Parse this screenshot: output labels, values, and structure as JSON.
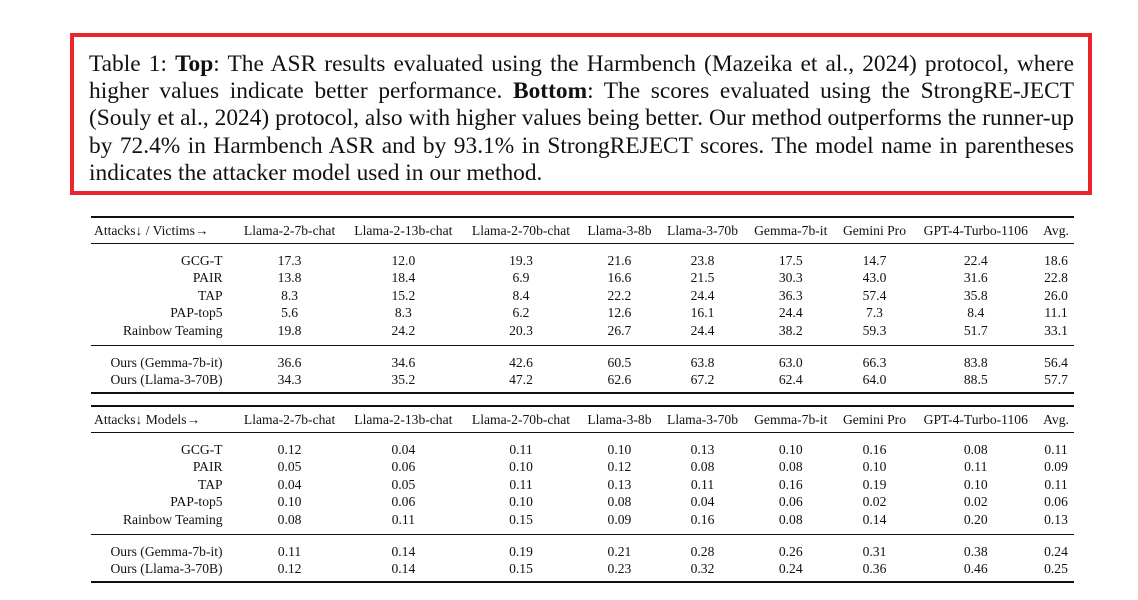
{
  "caption": {
    "prefix": "Table 1: ",
    "top_label": "Top",
    "top_text": ": The ASR results evaluated using the Harmbench (Mazeika et al., 2024) protocol, where higher values indicate better performance. ",
    "bottom_label": "Bottom",
    "bottom_text": ": The scores evaluated using the StrongRE-JECT (Souly et al., 2024) protocol, also with higher values being better. Our method outperforms the runner-up by 72.4% in Harmbench ASR and by 93.1% in StrongREJECT scores. The model name in parentheses indicates the attacker model used in our method."
  },
  "tables": [
    {
      "header": [
        "Attacks↓ / Victims→",
        "Llama-2-7b-chat",
        "Llama-2-13b-chat",
        "Llama-2-70b-chat",
        "Llama-3-8b",
        "Llama-3-70b",
        "Gemma-7b-it",
        "Gemini Pro",
        "GPT-4-Turbo-1106",
        "Avg."
      ],
      "groups": [
        [
          {
            "name": "GCG-T",
            "values": [
              "17.3",
              "12.0",
              "19.3",
              "21.6",
              "23.8",
              "17.5",
              "14.7",
              "22.4",
              "18.6"
            ]
          },
          {
            "name": "PAIR",
            "values": [
              "13.8",
              "18.4",
              "6.9",
              "16.6",
              "21.5",
              "30.3",
              "43.0",
              "31.6",
              "22.8"
            ]
          },
          {
            "name": "TAP",
            "values": [
              "8.3",
              "15.2",
              "8.4",
              "22.2",
              "24.4",
              "36.3",
              "57.4",
              "35.8",
              "26.0"
            ]
          },
          {
            "name": "PAP-top5",
            "values": [
              "5.6",
              "8.3",
              "6.2",
              "12.6",
              "16.1",
              "24.4",
              "7.3",
              "8.4",
              "11.1"
            ]
          },
          {
            "name": "Rainbow Teaming",
            "values": [
              "19.8",
              "24.2",
              "20.3",
              "26.7",
              "24.4",
              "38.2",
              "59.3",
              "51.7",
              "33.1"
            ]
          }
        ],
        [
          {
            "name": "Ours (Gemma-7b-it)",
            "values": [
              "36.6",
              "34.6",
              "42.6",
              "60.5",
              "63.8",
              "63.0",
              "66.3",
              "83.8",
              "56.4"
            ],
            "bold": [
              0,
              5,
              6
            ]
          },
          {
            "name": "Ours (Llama-3-70B)",
            "values": [
              "34.3",
              "35.2",
              "47.2",
              "62.6",
              "67.2",
              "62.4",
              "64.0",
              "88.5",
              "57.7"
            ],
            "bold": [
              1,
              2,
              3,
              4,
              7,
              8
            ]
          }
        ]
      ]
    },
    {
      "header": [
        "Attacks↓ Models→",
        "Llama-2-7b-chat",
        "Llama-2-13b-chat",
        "Llama-2-70b-chat",
        "Llama-3-8b",
        "Llama-3-70b",
        "Gemma-7b-it",
        "Gemini Pro",
        "GPT-4-Turbo-1106",
        "Avg."
      ],
      "groups": [
        [
          {
            "name": "GCG-T",
            "values": [
              "0.12",
              "0.04",
              "0.11",
              "0.10",
              "0.13",
              "0.10",
              "0.16",
              "0.08",
              "0.11"
            ],
            "bold": [
              0
            ]
          },
          {
            "name": "PAIR",
            "values": [
              "0.05",
              "0.06",
              "0.10",
              "0.12",
              "0.08",
              "0.08",
              "0.10",
              "0.11",
              "0.09"
            ]
          },
          {
            "name": "TAP",
            "values": [
              "0.04",
              "0.05",
              "0.11",
              "0.13",
              "0.11",
              "0.16",
              "0.19",
              "0.10",
              "0.11"
            ]
          },
          {
            "name": "PAP-top5",
            "values": [
              "0.10",
              "0.06",
              "0.10",
              "0.08",
              "0.04",
              "0.06",
              "0.02",
              "0.02",
              "0.06"
            ]
          },
          {
            "name": "Rainbow Teaming",
            "values": [
              "0.08",
              "0.11",
              "0.15",
              "0.09",
              "0.16",
              "0.08",
              "0.14",
              "0.20",
              "0.13"
            ]
          }
        ],
        [
          {
            "name": "Ours (Gemma-7b-it)",
            "values": [
              "0.11",
              "0.14",
              "0.19",
              "0.21",
              "0.28",
              "0.26",
              "0.31",
              "0.38",
              "0.24"
            ],
            "bold": [
              1,
              2,
              5
            ]
          },
          {
            "name": "Ours (Llama-3-70B)",
            "values": [
              "0.12",
              "0.14",
              "0.15",
              "0.23",
              "0.32",
              "0.24",
              "0.36",
              "0.46",
              "0.25"
            ],
            "bold": [
              0,
              1,
              3,
              4,
              6,
              7,
              8
            ]
          }
        ]
      ]
    }
  ],
  "colors": {
    "caption_border": "#e8262b",
    "text": "#111111"
  }
}
